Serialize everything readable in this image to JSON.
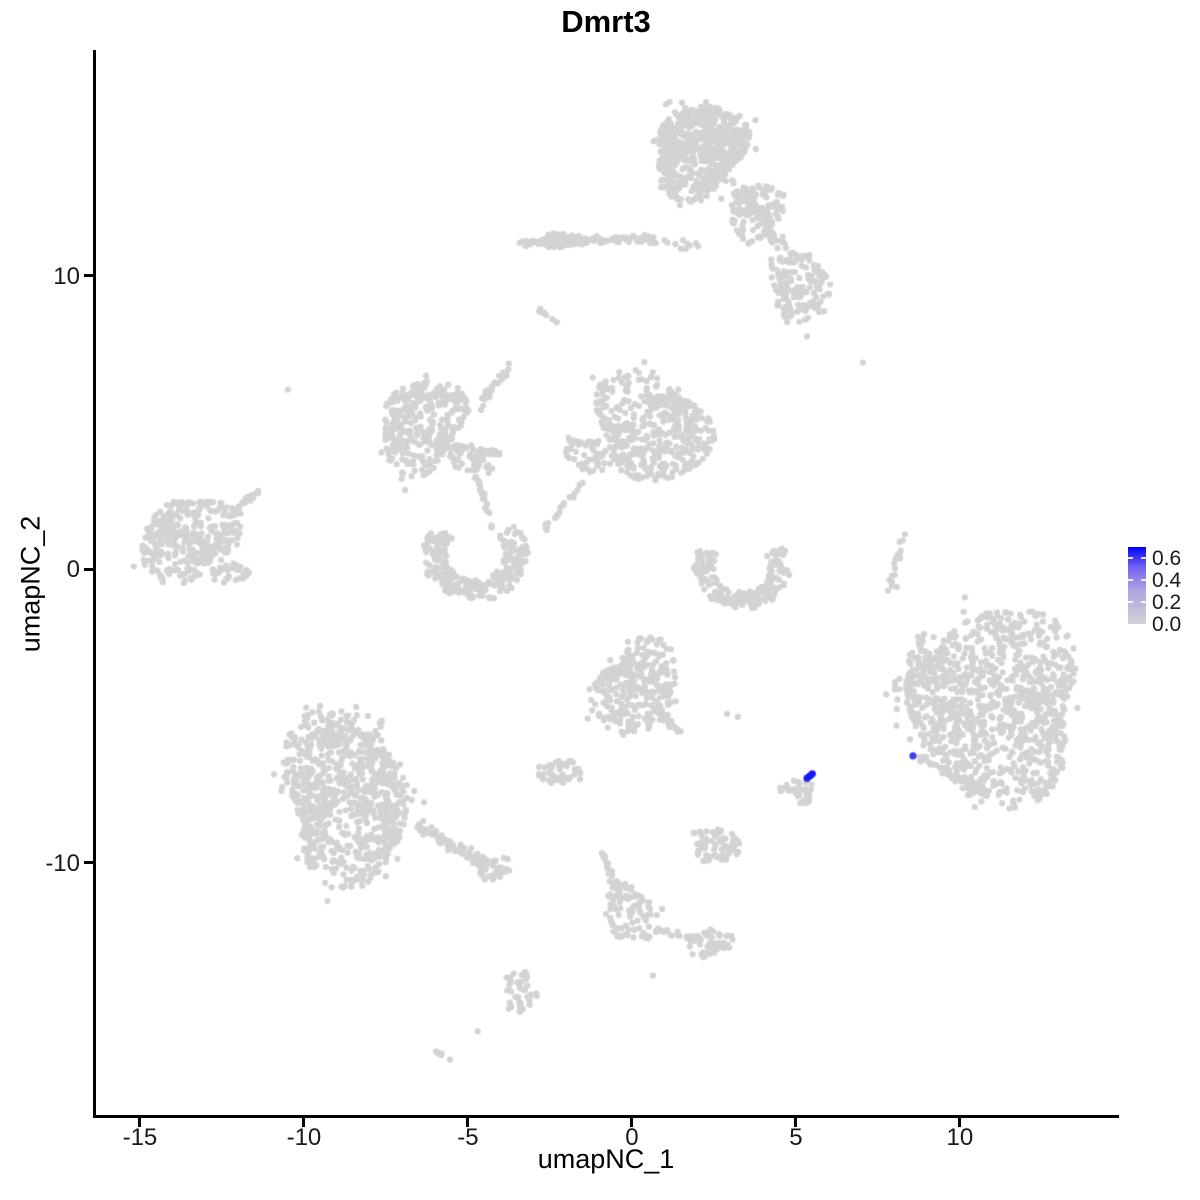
{
  "figure": {
    "background": "#FFFFFF"
  },
  "chart_data": {
    "type": "scatter",
    "title": "Dmrt3",
    "xlabel": "umapNC_1",
    "ylabel": "umapNC_2",
    "xlim": [
      -16.37,
      14.79
    ],
    "ylim": [
      -18.63,
      17.69
    ],
    "x_ticks": [
      -15,
      -10,
      -5,
      0,
      5,
      10
    ],
    "y_ticks": [
      10,
      0,
      -10
    ],
    "grid": false,
    "point_color_low": "#D3D3D3",
    "point_color_high": "#0000FF",
    "legend": {
      "position": "right",
      "ticks": [
        "0.6",
        "0.4",
        "0.2",
        "0.0"
      ],
      "tick_values": [
        0.6,
        0.4,
        0.2,
        0.0
      ],
      "domain": [
        0,
        0.7
      ]
    },
    "clusters": [
      {
        "shape": "blob",
        "cx": 2.07,
        "cy": 14.29,
        "rx": 1.5,
        "ry": 1.45,
        "n": 650
      },
      {
        "shape": "blob",
        "cx": 3.81,
        "cy": 12.18,
        "rx": 0.9,
        "ry": 0.9,
        "n": 110
      },
      {
        "shape": "blob",
        "cx": 5.12,
        "cy": 9.63,
        "rx": 1.0,
        "ry": 1.05,
        "n": 150
      },
      {
        "shape": "blob",
        "cx": -2.2,
        "cy": 11.2,
        "rx": 0.45,
        "ry": 0.3,
        "n": 40
      },
      {
        "shape": "strand",
        "x1": 3.14,
        "y1": 13.1,
        "x2": 4.97,
        "y2": 10.37,
        "jitter": 0.5,
        "n": 55
      },
      {
        "shape": "strand",
        "x1": -3.41,
        "y1": 11.09,
        "x2": 0.49,
        "y2": 11.29,
        "jitter": 0.22,
        "n": 110
      },
      {
        "shape": "strand",
        "x1": 0.5,
        "y1": 11.2,
        "x2": 2.0,
        "y2": 11.0,
        "jitter": 0.3,
        "n": 16
      },
      {
        "shape": "strand",
        "x1": -2.84,
        "y1": 8.84,
        "x2": -2.32,
        "y2": 8.44,
        "jitter": 0.1,
        "n": 9
      },
      {
        "shape": "blob",
        "cx": -6.4,
        "cy": 4.9,
        "rx": 1.35,
        "ry": 1.5,
        "n": 320
      },
      {
        "shape": "strand",
        "x1": -6.68,
        "y1": 5.92,
        "x2": -5.09,
        "y2": 5.85,
        "jitter": 0.15,
        "n": 30
      },
      {
        "shape": "strand",
        "x1": -6.01,
        "y1": 4.25,
        "x2": -4.02,
        "y2": 3.91,
        "jitter": 0.2,
        "n": 40
      },
      {
        "shape": "blob",
        "cx": -4.94,
        "cy": 3.74,
        "rx": 0.67,
        "ry": 0.51,
        "n": 50
      },
      {
        "shape": "strand",
        "x1": -4.73,
        "y1": 5.44,
        "x2": -3.63,
        "y2": 7.07,
        "jitter": 0.2,
        "n": 30
      },
      {
        "shape": "strand",
        "x1": -4.79,
        "y1": 3.23,
        "x2": -4.18,
        "y2": 1.26,
        "jitter": 0.12,
        "n": 22
      },
      {
        "shape": "strand",
        "x1": -2.65,
        "y1": 1.36,
        "x2": -1.43,
        "y2": 3.06,
        "jitter": 0.18,
        "n": 20
      },
      {
        "shape": "blob",
        "cx": 0.61,
        "cy": 4.83,
        "rx": 1.8,
        "ry": 1.7,
        "n": 430
      },
      {
        "shape": "blob",
        "cx": -1.28,
        "cy": 3.91,
        "rx": 0.7,
        "ry": 0.6,
        "n": 55
      },
      {
        "shape": "arc",
        "cx": -4.79,
        "cy": 0.51,
        "r": 1.25,
        "a1": 140,
        "a2": 400,
        "thick": 0.7,
        "n": 280
      },
      {
        "shape": "blob",
        "cx": -13.48,
        "cy": 1.09,
        "rx": 1.52,
        "ry": 1.43,
        "n": 340
      },
      {
        "shape": "strand",
        "x1": -12.26,
        "y1": 1.8,
        "x2": -11.28,
        "y2": 2.82,
        "jitter": 0.15,
        "n": 25
      },
      {
        "shape": "blob",
        "cx": -12.32,
        "cy": 0.0,
        "rx": 0.67,
        "ry": 0.44,
        "n": 35
      },
      {
        "shape": "arc",
        "cx": 3.35,
        "cy": 0.07,
        "r": 1.15,
        "a1": 150,
        "a2": 390,
        "thick": 0.6,
        "n": 200
      },
      {
        "shape": "strand",
        "x1": 8.32,
        "y1": 1.29,
        "x2": 7.84,
        "y2": -0.82,
        "jitter": 0.12,
        "n": 20
      },
      {
        "shape": "blob",
        "cx": 11.07,
        "cy": -4.59,
        "rx": 2.9,
        "ry": 2.9,
        "n": 1050
      },
      {
        "shape": "blob",
        "cx": 8.93,
        "cy": -3.23,
        "rx": 0.6,
        "ry": 1.0,
        "n": 45
      },
      {
        "shape": "blob",
        "cx": 7.9,
        "cy": -4.1,
        "rx": 0.4,
        "ry": 0.6,
        "n": 8
      },
      {
        "shape": "strand",
        "x1": 8.78,
        "y1": -6.46,
        "x2": 10.91,
        "y2": -7.65,
        "jitter": 0.25,
        "n": 50
      },
      {
        "shape": "blob",
        "cx": 0.12,
        "cy": -4.08,
        "rx": 1.3,
        "ry": 1.55,
        "n": 300
      },
      {
        "shape": "strand",
        "x1": 0.91,
        "y1": -4.93,
        "x2": 1.46,
        "y2": -5.68,
        "jitter": 0.18,
        "n": 22
      },
      {
        "shape": "blob",
        "cx": -2.2,
        "cy": -6.9,
        "rx": 0.6,
        "ry": 0.5,
        "n": 50
      },
      {
        "shape": "blob",
        "cx": 5.12,
        "cy": -7.52,
        "rx": 0.5,
        "ry": 0.42,
        "n": 26
      },
      {
        "shape": "strand",
        "x1": 4.5,
        "y1": -7.45,
        "x2": 5.0,
        "y2": -7.55,
        "jitter": 0.15,
        "n": 10
      },
      {
        "shape": "blob",
        "cx": -8.75,
        "cy": -7.82,
        "rx": 2.0,
        "ry": 2.65,
        "n": 800
      },
      {
        "shape": "blob",
        "cx": -8.6,
        "cy": -5.6,
        "rx": 1.25,
        "ry": 0.55,
        "n": 60
      },
      {
        "shape": "strand",
        "x1": -6.62,
        "y1": -8.67,
        "x2": -4.02,
        "y2": -10.37,
        "jitter": 0.35,
        "n": 95
      },
      {
        "shape": "blob",
        "cx": -4.18,
        "cy": -10.27,
        "rx": 0.49,
        "ry": 0.41,
        "n": 25
      },
      {
        "shape": "blob",
        "cx": 2.56,
        "cy": -9.39,
        "rx": 0.8,
        "ry": 0.55,
        "n": 70
      },
      {
        "shape": "strand",
        "x1": -0.88,
        "y1": -9.69,
        "x2": -0.3,
        "y2": -11.3,
        "jitter": 0.2,
        "n": 30
      },
      {
        "shape": "blob",
        "cx": -0.06,
        "cy": -11.73,
        "rx": 0.76,
        "ry": 1.02,
        "n": 90
      },
      {
        "shape": "strand",
        "x1": 0.55,
        "y1": -12.24,
        "x2": 1.92,
        "y2": -12.59,
        "jitter": 0.18,
        "n": 15
      },
      {
        "shape": "blob",
        "cx": 2.38,
        "cy": -12.72,
        "rx": 0.62,
        "ry": 0.5,
        "n": 55
      },
      {
        "shape": "blob",
        "cx": -3.38,
        "cy": -14.35,
        "rx": 0.42,
        "ry": 0.9,
        "n": 42
      },
      {
        "shape": "strand",
        "x1": -6.04,
        "y1": -16.39,
        "x2": -5.58,
        "y2": -16.73,
        "jitter": 0.08,
        "n": 8
      },
      {
        "shape": "dots",
        "pts": [
          [
            5.34,
            7.93
          ],
          [
            7.04,
            7.04
          ],
          [
            -10.49,
            6.12
          ],
          [
            0.64,
            -13.84
          ],
          [
            -4.7,
            -15.75
          ],
          [
            8.08,
            -0.61
          ],
          [
            2.9,
            -4.93
          ],
          [
            3.23,
            -5.03
          ]
        ]
      }
    ],
    "highlight_points": [
      {
        "x": 5.34,
        "y": -7.12,
        "value": 0.6
      },
      {
        "x": 5.43,
        "y": -7.04,
        "value": 0.62
      },
      {
        "x": 5.5,
        "y": -6.97,
        "value": 0.62
      },
      {
        "x": 8.57,
        "y": -6.36,
        "value": 0.5
      }
    ]
  }
}
